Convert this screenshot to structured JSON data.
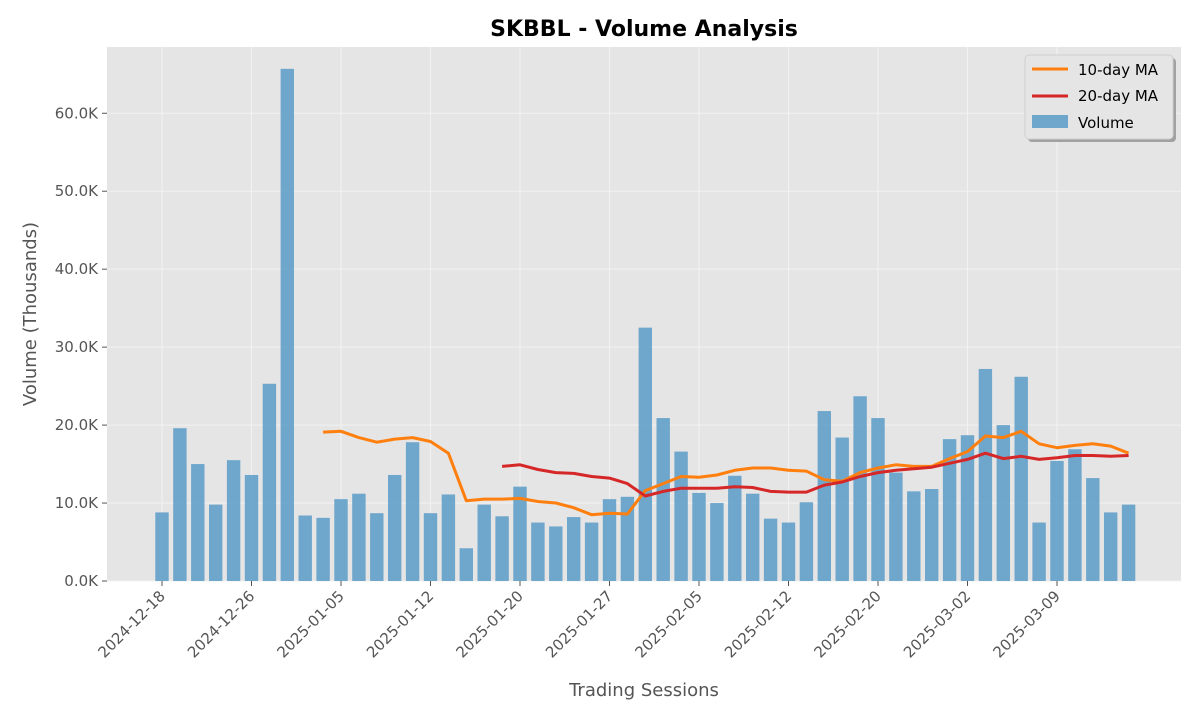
{
  "chart_data": {
    "type": "bar",
    "title": "SKBBL - Volume Analysis",
    "xlabel": "Trading Sessions",
    "ylabel": "Volume (Thousands)",
    "ylim": [
      0,
      68500
    ],
    "yticks": [
      0,
      10000,
      20000,
      30000,
      40000,
      50000,
      60000
    ],
    "ytick_labels": [
      "0.0K",
      "10.0K",
      "20.0K",
      "30.0K",
      "40.0K",
      "50.0K",
      "60.0K"
    ],
    "xtick_labels": [
      "2024-12-18",
      "2024-12-26",
      "2025-01-05",
      "2025-01-12",
      "2025-01-20",
      "2025-01-27",
      "2025-02-05",
      "2025-02-12",
      "2025-02-20",
      "2025-03-02",
      "2025-03-09"
    ],
    "xtick_sessions": [
      0,
      5,
      10,
      15,
      20,
      25,
      30,
      35,
      40,
      45,
      50
    ],
    "grid": true,
    "legend_position": "top-right",
    "colors": {
      "volume": "#5b9bc7",
      "ma10": "#ff7f0e",
      "ma20": "#d62728",
      "plot_bg": "#e5e5e5",
      "grid": "#f2f2f2"
    },
    "series": [
      {
        "name": "Volume",
        "kind": "bar",
        "values": [
          8800,
          19600,
          15000,
          9800,
          15500,
          13600,
          25300,
          65700,
          8400,
          8100,
          10500,
          11200,
          8700,
          13600,
          17800,
          8700,
          11100,
          4200,
          9800,
          8300,
          12100,
          7500,
          7000,
          8200,
          7500,
          10500,
          10800,
          32500,
          20900,
          16600,
          11300,
          10000,
          13500,
          11200,
          8000,
          7500,
          10100,
          21800,
          18400,
          23700,
          20900,
          13900,
          11500,
          11800,
          18200,
          18700,
          27200,
          20000,
          26200,
          7500,
          15400,
          16900,
          13200,
          8800,
          9800
        ]
      },
      {
        "name": "10-day MA",
        "kind": "line",
        "values": [
          null,
          null,
          null,
          null,
          null,
          null,
          null,
          null,
          null,
          19100,
          19200,
          18400,
          17800,
          18200,
          18400,
          17900,
          16400,
          10300,
          10500,
          10500,
          10600,
          10200,
          10000,
          9400,
          8500,
          8700,
          8600,
          11600,
          12500,
          13400,
          13300,
          13600,
          14200,
          14500,
          14500,
          14200,
          14100,
          13000,
          12800,
          13900,
          14500,
          14900,
          14700,
          14700,
          15700,
          16600,
          18600,
          18400,
          19200,
          17600,
          17100,
          17400,
          17600,
          17300,
          16400
        ]
      },
      {
        "name": "20-day MA",
        "kind": "line",
        "values": [
          null,
          null,
          null,
          null,
          null,
          null,
          null,
          null,
          null,
          null,
          null,
          null,
          null,
          null,
          null,
          null,
          null,
          null,
          null,
          14700,
          14900,
          14300,
          13900,
          13800,
          13400,
          13200,
          12500,
          10900,
          11500,
          11900,
          11900,
          11900,
          12100,
          12000,
          11500,
          11400,
          11400,
          12300,
          12700,
          13400,
          13900,
          14200,
          14400,
          14600,
          15100,
          15600,
          16400,
          15700,
          16000,
          15600,
          15800,
          16100,
          16100,
          16000,
          16100
        ]
      }
    ]
  }
}
